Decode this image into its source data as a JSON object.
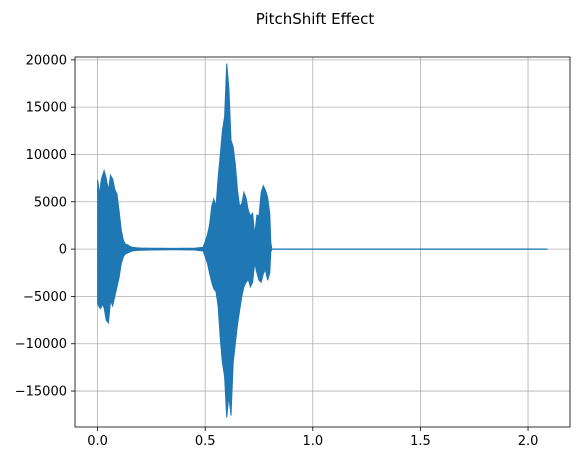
{
  "chart_data": {
    "type": "line",
    "title": "PitchShift Effect",
    "xlabel": "",
    "ylabel": "",
    "xlim": [
      -0.105,
      2.195
    ],
    "ylim": [
      -18800,
      20300
    ],
    "x_ticks": [
      0.0,
      0.5,
      1.0,
      1.5,
      2.0
    ],
    "x_tick_labels": [
      "0.0",
      "0.5",
      "1.0",
      "1.5",
      "2.0"
    ],
    "y_ticks": [
      -15000,
      -10000,
      -5000,
      0,
      5000,
      10000,
      15000,
      20000
    ],
    "y_tick_labels": [
      "−15000",
      "−10000",
      "−5000",
      "0",
      "5000",
      "10000",
      "15000",
      "20000"
    ],
    "grid": true,
    "series": [
      {
        "color": "#1f77b4",
        "envelope": {
          "x": [
            0.0,
            0.005,
            0.01,
            0.015,
            0.02,
            0.03,
            0.04,
            0.05,
            0.06,
            0.07,
            0.08,
            0.09,
            0.1,
            0.11,
            0.12,
            0.13,
            0.14,
            0.15,
            0.16,
            0.18,
            0.2,
            0.25,
            0.3,
            0.35,
            0.4,
            0.45,
            0.49,
            0.5,
            0.51,
            0.52,
            0.53,
            0.54,
            0.55,
            0.56,
            0.57,
            0.58,
            0.59,
            0.6,
            0.61,
            0.62,
            0.63,
            0.64,
            0.65,
            0.66,
            0.67,
            0.68,
            0.69,
            0.7,
            0.71,
            0.72,
            0.73,
            0.74,
            0.75,
            0.76,
            0.77,
            0.78,
            0.79,
            0.8,
            0.805,
            0.81,
            1.0,
            1.5,
            2.0,
            2.09
          ],
          "max": [
            7300,
            6500,
            5800,
            7000,
            7600,
            8300,
            7500,
            6200,
            7800,
            7400,
            6300,
            5800,
            4000,
            2000,
            900,
            500,
            450,
            300,
            200,
            150,
            120,
            100,
            80,
            70,
            80,
            100,
            200,
            800,
            1500,
            2500,
            4500,
            5300,
            4500,
            7500,
            10000,
            12500,
            14000,
            19600,
            17000,
            11500,
            10800,
            9000,
            6200,
            4500,
            4800,
            6000,
            5400,
            4100,
            3500,
            3800,
            1500,
            3600,
            3500,
            6000,
            6700,
            6200,
            5500,
            3700,
            700,
            0,
            0,
            0,
            0,
            0
          ],
          "min": [
            -5800,
            -6000,
            -6200,
            -6300,
            -5800,
            -6200,
            -7500,
            -7800,
            -5500,
            -6000,
            -5000,
            -4000,
            -3000,
            -1500,
            -800,
            -500,
            -400,
            -300,
            -200,
            -150,
            -120,
            -100,
            -80,
            -70,
            -80,
            -100,
            -200,
            -800,
            -1500,
            -2500,
            -3500,
            -4200,
            -4500,
            -6000,
            -9500,
            -12000,
            -13500,
            -17800,
            -15500,
            -17600,
            -12000,
            -10000,
            -8000,
            -6500,
            -5000,
            -4000,
            -3500,
            -3200,
            -4000,
            -3500,
            -1500,
            -2500,
            -3300,
            -3500,
            -2600,
            -2200,
            -3300,
            -2500,
            -300,
            0,
            0,
            0,
            0,
            0
          ]
        }
      }
    ]
  }
}
